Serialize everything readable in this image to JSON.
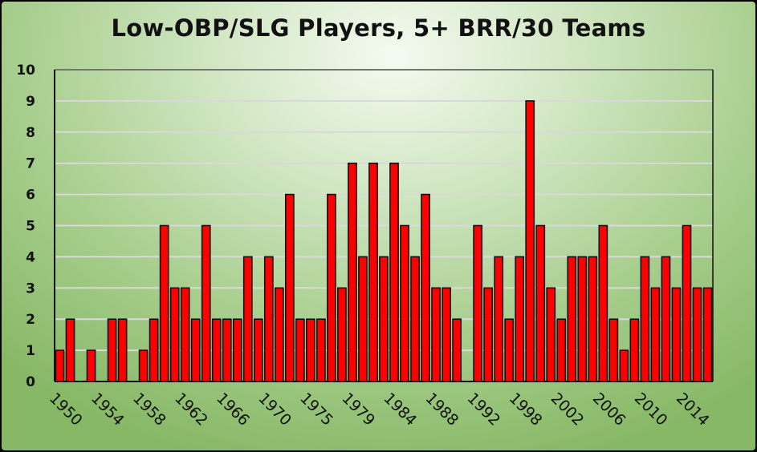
{
  "chart_data": {
    "type": "bar",
    "title": "Low-OBP/SLG Players, 5+ BRR/30 Teams",
    "xlabel": "",
    "ylabel": "",
    "ylim": [
      0,
      10
    ],
    "yticks": [
      0,
      1,
      2,
      3,
      4,
      5,
      6,
      7,
      8,
      9,
      10
    ],
    "grid": true,
    "legend": "none",
    "categories": [
      1950,
      1951,
      1952,
      1953,
      1954,
      1955,
      1956,
      1957,
      1958,
      1959,
      1960,
      1961,
      1962,
      1963,
      1964,
      1965,
      1966,
      1967,
      1968,
      1969,
      1970,
      1971,
      1973,
      1974,
      1975,
      1976,
      1977,
      1978,
      1979,
      1980,
      1982,
      1983,
      1984,
      1985,
      1986,
      1987,
      1988,
      1989,
      1990,
      1991,
      1992,
      1993,
      1996,
      1997,
      1998,
      1999,
      2000,
      2001,
      2002,
      2003,
      2004,
      2005,
      2006,
      2007,
      2008,
      2009,
      2010,
      2011,
      2012,
      2013,
      2014,
      2015,
      2016
    ],
    "tick_labels": [
      "1950",
      "1954",
      "1958",
      "1962",
      "1966",
      "1970",
      "1975",
      "1979",
      "1984",
      "1988",
      "1992",
      "1998",
      "2002",
      "2006",
      "2010",
      "2014"
    ],
    "values": [
      1,
      2,
      0,
      1,
      0,
      2,
      2,
      0,
      1,
      2,
      5,
      3,
      3,
      2,
      5,
      2,
      2,
      2,
      4,
      2,
      4,
      3,
      6,
      2,
      2,
      2,
      6,
      3,
      7,
      4,
      7,
      4,
      7,
      5,
      4,
      6,
      3,
      3,
      2,
      0,
      5,
      3,
      4,
      2,
      4,
      9,
      5,
      3,
      2,
      4,
      4,
      4,
      5,
      2,
      1,
      2,
      4,
      3,
      4,
      3,
      5,
      3,
      3
    ],
    "bar_color": "#ff0000",
    "bar_edge": "#111111",
    "grid_color": "#d9d9d9"
  }
}
